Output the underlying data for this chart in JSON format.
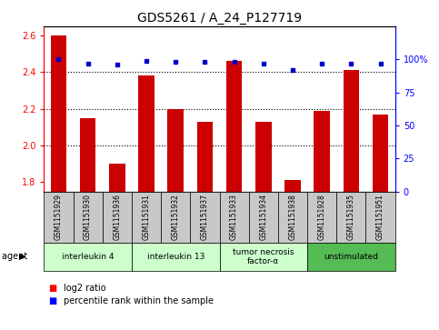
{
  "title": "GDS5261 / A_24_P127719",
  "samples": [
    "GSM1151929",
    "GSM1151930",
    "GSM1151936",
    "GSM1151931",
    "GSM1151932",
    "GSM1151937",
    "GSM1151933",
    "GSM1151934",
    "GSM1151938",
    "GSM1151928",
    "GSM1151935",
    "GSM1151951"
  ],
  "log2_values": [
    2.6,
    2.15,
    1.9,
    2.38,
    2.2,
    2.13,
    2.46,
    2.13,
    1.81,
    2.19,
    2.41,
    2.17
  ],
  "percentile_values": [
    100,
    97,
    96,
    99,
    98,
    98,
    98,
    97,
    92,
    97,
    97,
    97
  ],
  "groups": [
    {
      "label": "interleukin 4",
      "indices": [
        0,
        1,
        2
      ],
      "color": "#ccffcc"
    },
    {
      "label": "interleukin 13",
      "indices": [
        3,
        4,
        5
      ],
      "color": "#ccffcc"
    },
    {
      "label": "tumor necrosis\nfactor-α",
      "indices": [
        6,
        7,
        8
      ],
      "color": "#ccffcc"
    },
    {
      "label": "unstimulated",
      "indices": [
        9,
        10,
        11
      ],
      "color": "#55bb55"
    }
  ],
  "ylim_left": [
    1.75,
    2.65
  ],
  "ylim_right": [
    0,
    125
  ],
  "yticks_left": [
    1.8,
    2.0,
    2.2,
    2.4,
    2.6
  ],
  "yticks_right": [
    0,
    25,
    50,
    75,
    100
  ],
  "bar_color": "#cc0000",
  "dot_color": "#0000cc",
  "bar_width": 0.55,
  "plot_bg": "#ffffff",
  "tick_bg": "#c8c8c8",
  "grid_lines": [
    2.0,
    2.2,
    2.4
  ],
  "title_fontsize": 10,
  "tick_fontsize": 7,
  "label_fontsize": 7
}
